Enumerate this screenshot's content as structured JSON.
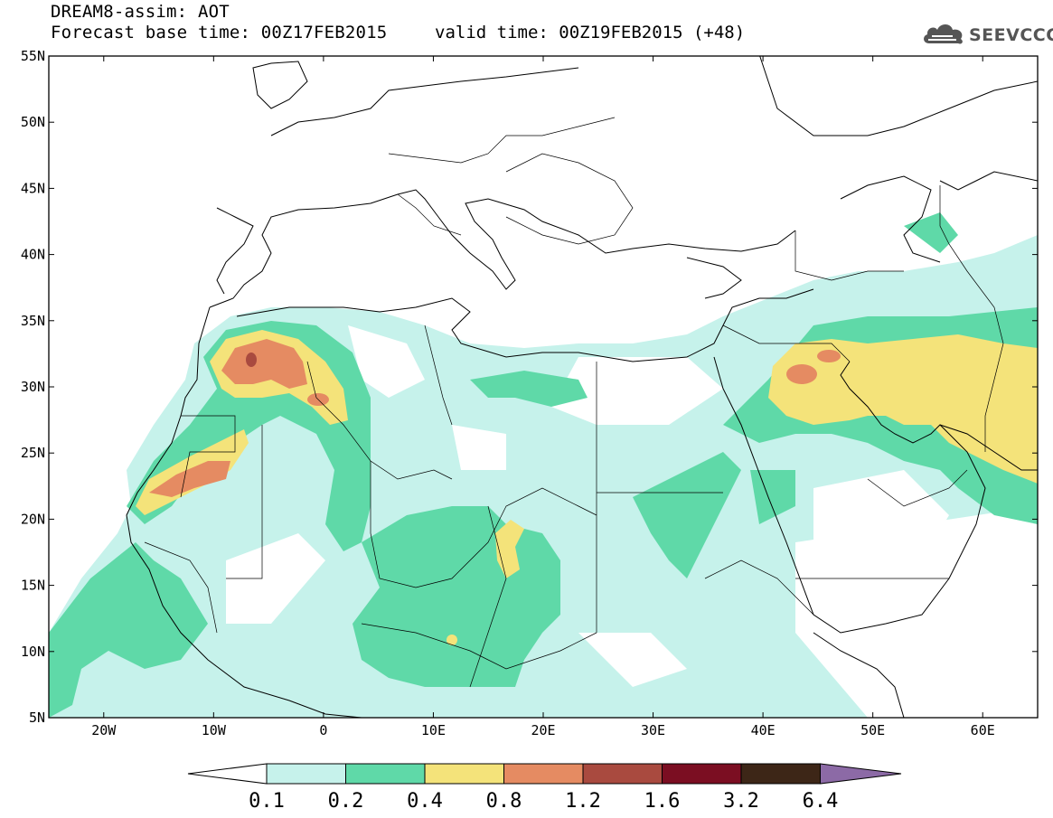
{
  "title": {
    "line1": "DREAM8-assim: AOT",
    "line2": "Forecast base time: 00Z17FEB2015",
    "valid": "valid time: 00Z19FEB2015 (+48)"
  },
  "logo": {
    "text": "SEEVCCC",
    "icon": "cloud-icon"
  },
  "map": {
    "projection": "lat-lon",
    "lon_range": [
      -25,
      65
    ],
    "lat_range": [
      5,
      55
    ],
    "lon_ticks": [
      "20W",
      "10W",
      "0",
      "10E",
      "20E",
      "30E",
      "40E",
      "50E",
      "60E"
    ],
    "lat_ticks": [
      "55N",
      "50N",
      "45N",
      "40N",
      "35N",
      "30N",
      "25N",
      "20N",
      "15N",
      "10N",
      "5N"
    ],
    "field": "aerosol optical thickness",
    "plumes": [
      {
        "region": "Morocco / Algeria coast",
        "max_level": "1.2"
      },
      {
        "region": "Western Sahara / Mauritania coast",
        "max_level": "1.2"
      },
      {
        "region": "Chad",
        "max_level": "0.8"
      },
      {
        "region": "Nigeria",
        "max_level": "0.8"
      },
      {
        "region": "Iraq / Persian Gulf / Arabian Sea",
        "max_level": "1.2"
      }
    ]
  },
  "colorbar": {
    "levels": [
      "0.1",
      "0.2",
      "0.4",
      "0.8",
      "1.2",
      "1.6",
      "3.2",
      "6.4"
    ],
    "colors": [
      "#c6f2eb",
      "#5fd9a8",
      "#f4e37a",
      "#e58b62",
      "#a94a3f",
      "#7b0e22",
      "#3d2617",
      "#8c6aa6"
    ]
  }
}
